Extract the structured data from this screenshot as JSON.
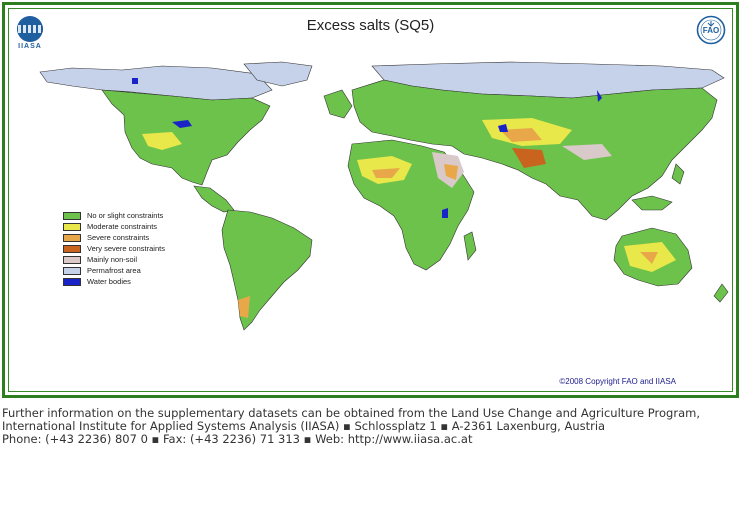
{
  "map": {
    "title": "Excess salts (SQ5)",
    "logos": {
      "left": {
        "icon": "iiasa-logo",
        "text": "IIASA"
      },
      "right": {
        "icon": "fao-logo",
        "text": "FAO"
      }
    },
    "copyright": "©2008 Copyright FAO and IIASA",
    "legend": [
      {
        "label": "No or slight constraints",
        "color": "#6cc24a"
      },
      {
        "label": "Moderate constraints",
        "color": "#e8e84a"
      },
      {
        "label": "Severe constraints",
        "color": "#e8a84a"
      },
      {
        "label": "Very severe constraints",
        "color": "#c8641e"
      },
      {
        "label": "Mainly non-soil",
        "color": "#d9c9c9"
      },
      {
        "label": "Permafrost area",
        "color": "#c6d2ea"
      },
      {
        "label": "Water bodies",
        "color": "#1a23c8"
      }
    ]
  },
  "footer": {
    "line1": "Further information on the supplementary datasets can be obtained from the Land Use Change and Agriculture Program,",
    "line2": "International Institute for Applied Systems Analysis (IIASA) ▪ Schlossplatz 1 ▪ A-2361 Laxenburg, Austria",
    "line3": "Phone: (+43 2236) 807 0 ▪ Fax: (+43 2236) 71 313 ▪ Web: http://www.iiasa.ac.at"
  }
}
